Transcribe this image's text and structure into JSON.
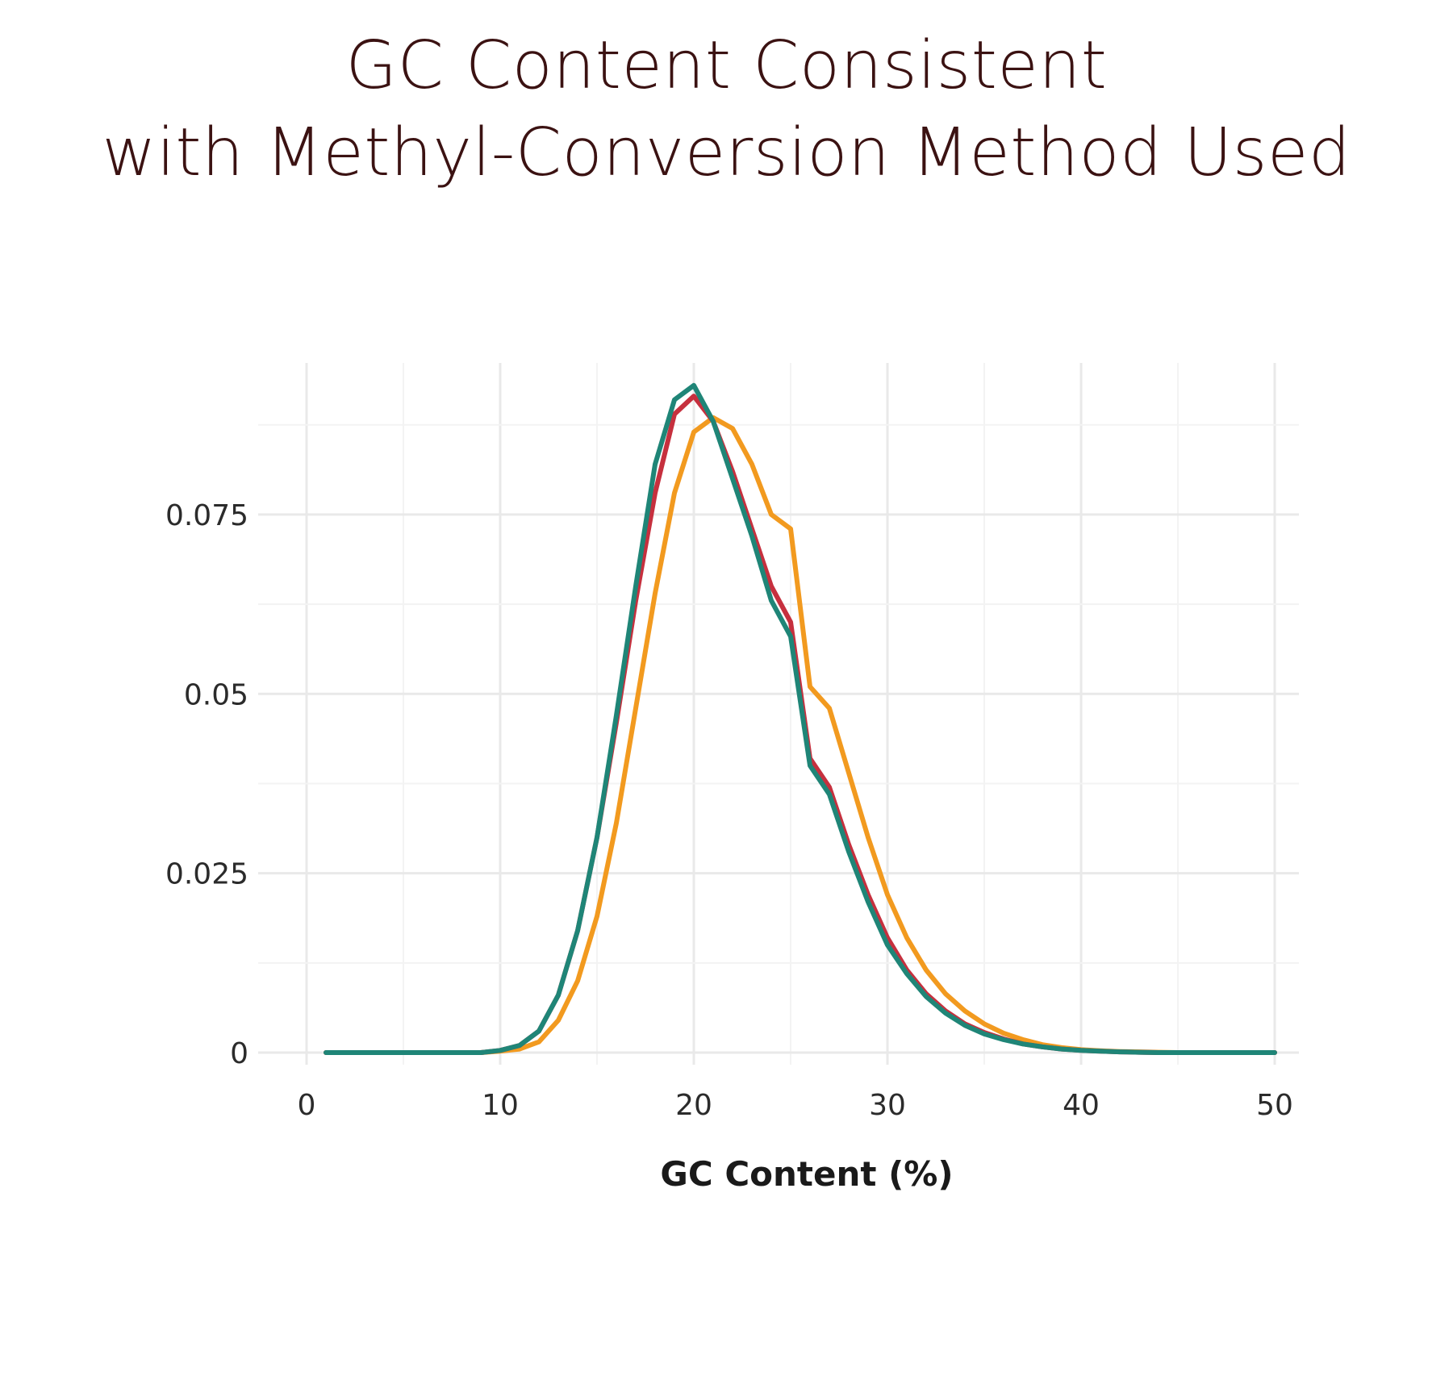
{
  "chart_data": {
    "type": "line",
    "title_lines": [
      "GC Content Consistent",
      "with Methyl-Conversion Method Used"
    ],
    "xlabel": "GC Content (%)",
    "ylabel": "",
    "xlim": [
      0,
      50
    ],
    "ylim": [
      0,
      0.095
    ],
    "x_ticks": [
      0,
      10,
      20,
      30,
      40,
      50
    ],
    "x_tick_labels": [
      "0",
      "10",
      "20",
      "30",
      "40",
      "50"
    ],
    "y_ticks": [
      0,
      0.025,
      0.05,
      0.075
    ],
    "y_tick_labels": [
      "0",
      "0.025",
      "0.05",
      "0.075"
    ],
    "grid": true,
    "legend": "none",
    "x": [
      1,
      2,
      3,
      4,
      5,
      6,
      7,
      8,
      9,
      10,
      11,
      12,
      13,
      14,
      15,
      16,
      17,
      18,
      19,
      20,
      21,
      22,
      23,
      24,
      25,
      26,
      27,
      28,
      29,
      30,
      31,
      32,
      33,
      34,
      35,
      36,
      37,
      38,
      39,
      40,
      41,
      42,
      43,
      44,
      45,
      46,
      47,
      48,
      49,
      50
    ],
    "series": [
      {
        "color": "#f29a1f",
        "values": [
          0,
          0,
          0,
          0,
          0,
          0,
          0,
          0,
          0,
          0.0002,
          0.0005,
          0.0015,
          0.0045,
          0.01,
          0.019,
          0.032,
          0.048,
          0.064,
          0.078,
          0.0865,
          0.0885,
          0.087,
          0.082,
          0.075,
          0.073,
          0.051,
          0.048,
          0.039,
          0.03,
          0.022,
          0.016,
          0.0115,
          0.0082,
          0.0058,
          0.004,
          0.0027,
          0.0018,
          0.0011,
          0.0007,
          0.0004,
          0.00025,
          0.00015,
          0.0001,
          5e-05,
          0,
          0,
          0,
          0,
          0,
          0
        ]
      },
      {
        "color": "#c6303e",
        "values": [
          0,
          0,
          0,
          0,
          0,
          0,
          0,
          0,
          0,
          0.0003,
          0.001,
          0.003,
          0.008,
          0.017,
          0.03,
          0.046,
          0.063,
          0.078,
          0.089,
          0.0915,
          0.088,
          0.081,
          0.073,
          0.065,
          0.06,
          0.041,
          0.037,
          0.029,
          0.022,
          0.016,
          0.0115,
          0.0082,
          0.0058,
          0.004,
          0.0028,
          0.0019,
          0.0012,
          0.0008,
          0.0005,
          0.0003,
          0.0002,
          0.0001,
          5e-05,
          0,
          0,
          0,
          0,
          0,
          0,
          0
        ]
      },
      {
        "color": "#1f8577",
        "values": [
          0,
          0,
          0,
          0,
          0,
          0,
          0,
          0,
          0,
          0.0003,
          0.001,
          0.003,
          0.008,
          0.017,
          0.03,
          0.047,
          0.065,
          0.082,
          0.091,
          0.093,
          0.088,
          0.08,
          0.072,
          0.063,
          0.058,
          0.04,
          0.036,
          0.028,
          0.021,
          0.015,
          0.011,
          0.0078,
          0.0055,
          0.0038,
          0.0026,
          0.0018,
          0.0012,
          0.0008,
          0.0005,
          0.0003,
          0.0002,
          0.0001,
          5e-05,
          0,
          0,
          0,
          0,
          0,
          0,
          0
        ]
      }
    ]
  }
}
